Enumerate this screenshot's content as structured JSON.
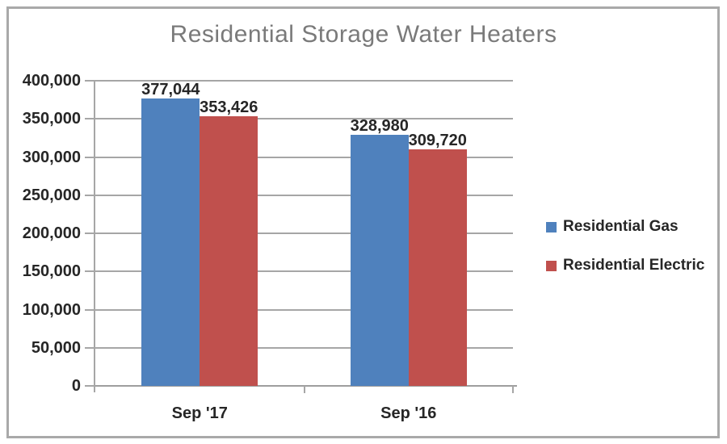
{
  "window": {
    "background": "#ffffff",
    "frame_border_color": "#a9a9a9"
  },
  "chart_data": {
    "type": "bar",
    "title": "Residential Storage Water Heaters",
    "title_color": "#7a7a7a",
    "categories": [
      "Sep '17",
      "Sep '16"
    ],
    "series": [
      {
        "name": "Residential Gas",
        "color": "#4F81BD",
        "values": [
          377044,
          328980
        ],
        "data_labels": [
          "377,044",
          "328,980"
        ]
      },
      {
        "name": "Residential Electric",
        "color": "#C0504D",
        "values": [
          353426,
          309720
        ],
        "data_labels": [
          "353,426",
          "309,720"
        ]
      }
    ],
    "xlabel": "",
    "ylabel": "",
    "ylim": [
      0,
      400000
    ],
    "ytick_step": 50000,
    "yticks": [
      {
        "value": 0,
        "label": "0"
      },
      {
        "value": 50000,
        "label": "50,000"
      },
      {
        "value": 100000,
        "label": "100,000"
      },
      {
        "value": 150000,
        "label": "150,000"
      },
      {
        "value": 200000,
        "label": "200,000"
      },
      {
        "value": 250000,
        "label": "250,000"
      },
      {
        "value": 300000,
        "label": "300,000"
      },
      {
        "value": 350000,
        "label": "350,000"
      },
      {
        "value": 400000,
        "label": "400,000"
      }
    ],
    "grid": true,
    "gridline_color": "#a6a6a6",
    "axis_color": "#9e9e9e",
    "label_color": "#262626",
    "legend_position": "right"
  }
}
